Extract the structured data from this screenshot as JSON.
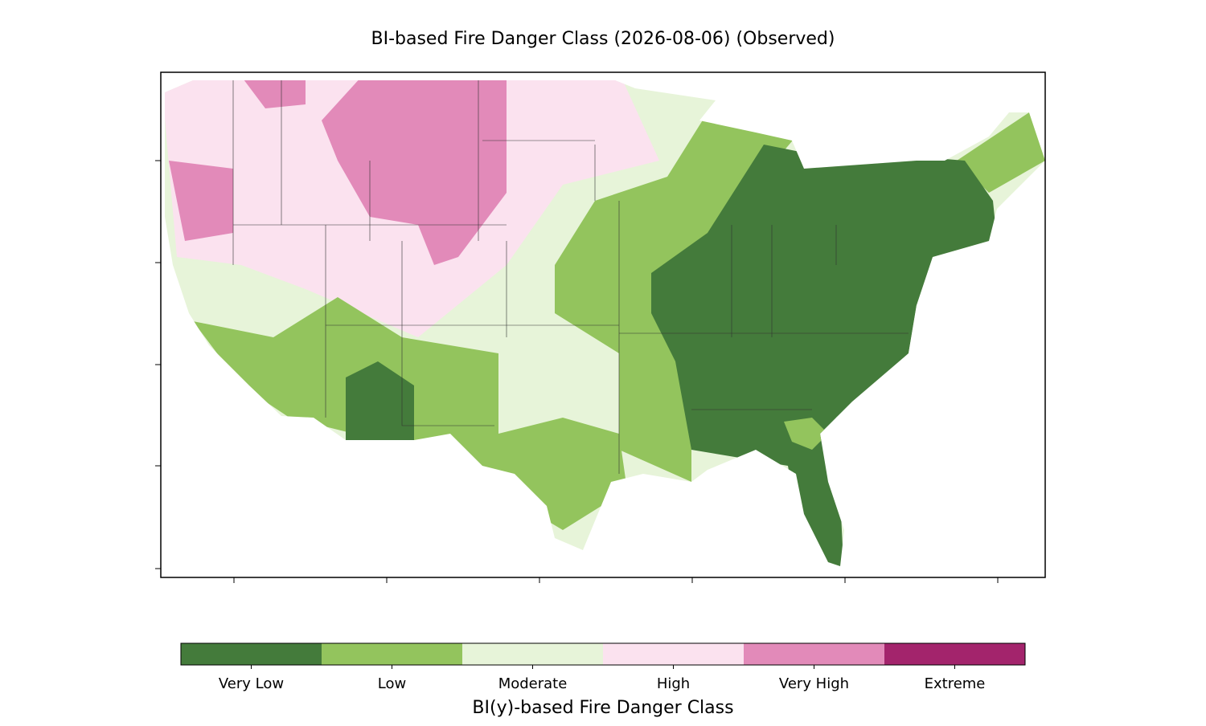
{
  "title": "BI-based Fire Danger Class (2026-08-06) (Observed)",
  "colorbar": {
    "label": "BI(y)-based Fire Danger Class",
    "classes": [
      {
        "label": "Very Low",
        "color": "#447b3b"
      },
      {
        "label": "Low",
        "color": "#93c45d"
      },
      {
        "label": "Moderate",
        "color": "#e7f4d9"
      },
      {
        "label": "High",
        "color": "#fbe2ef"
      },
      {
        "label": "Very High",
        "color": "#e28ab9"
      },
      {
        "label": "Extreme",
        "color": "#a3246c"
      }
    ]
  }
}
